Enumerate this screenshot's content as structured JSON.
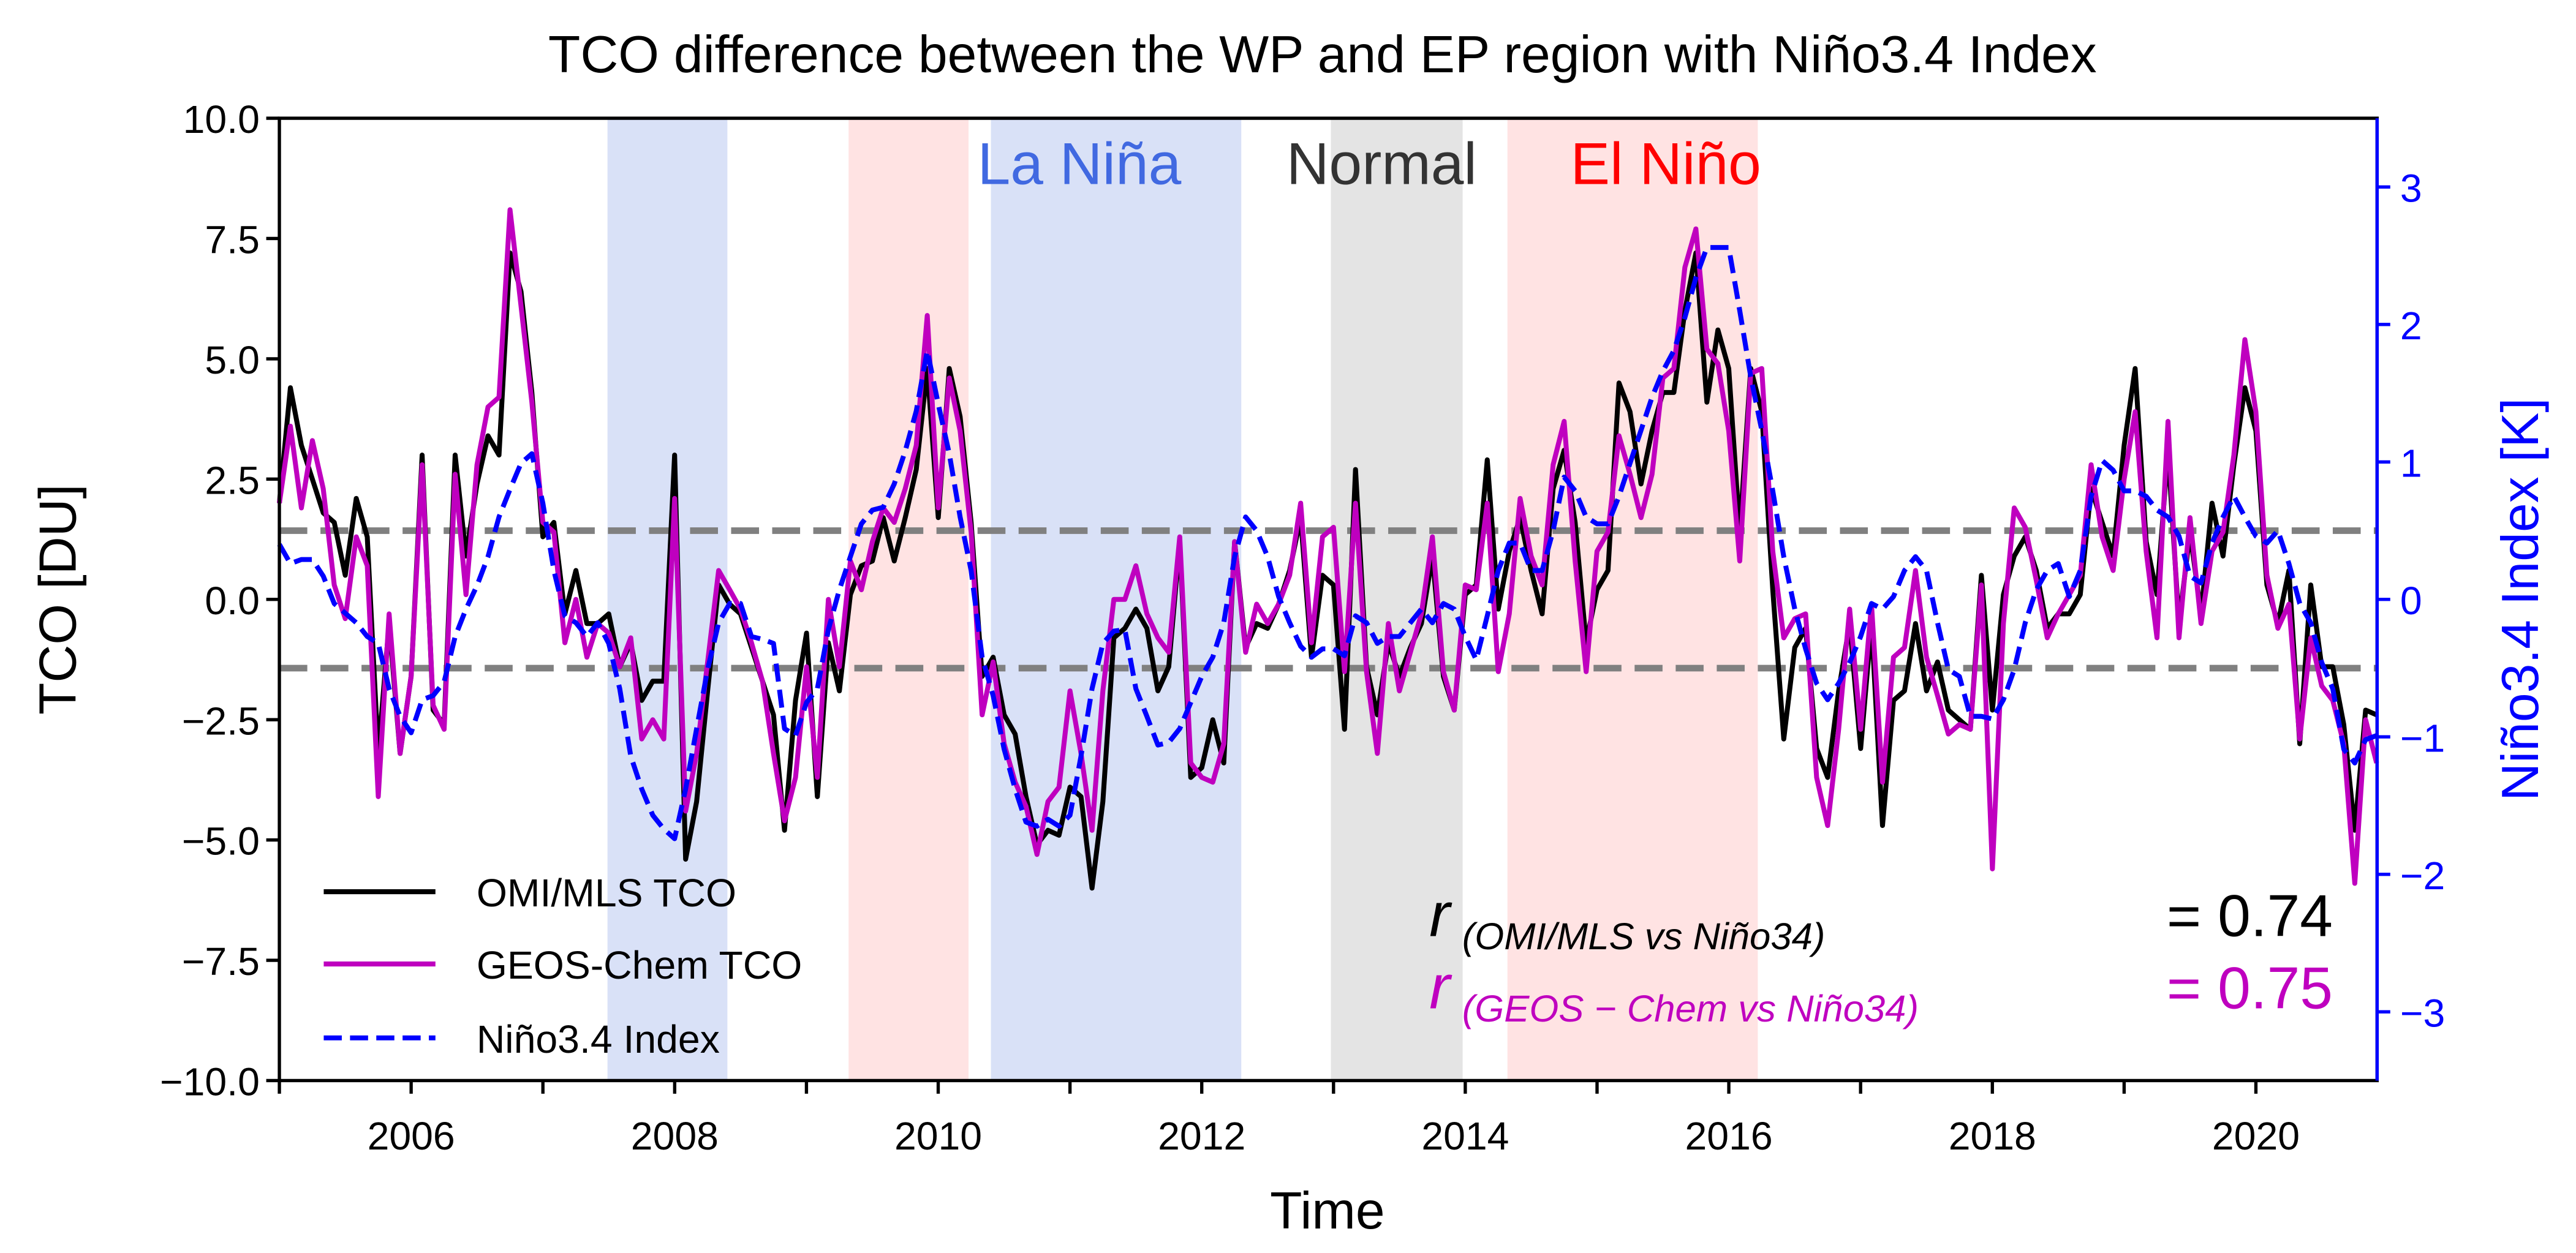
{
  "chart_data": {
    "type": "line",
    "title": "TCO difference between the WP and EP region with Niño3.4 Index",
    "xlabel": "Time",
    "ylabel": "TCO [DU]",
    "ylabel_right": "Niño3.4 Index [K]",
    "xlim": [
      2005.0,
      2020.92
    ],
    "ylim": [
      -10,
      10
    ],
    "ylim_right": [
      -3.5,
      3.5
    ],
    "x_start": 2005.0,
    "x_frequency": "monthly",
    "x_ticks": [
      2006,
      2008,
      2010,
      2012,
      2014,
      2016,
      2018,
      2020
    ],
    "x_tick_labels": [
      "2006",
      "2008",
      "2010",
      "2012",
      "2014",
      "2016",
      "2018",
      "2020"
    ],
    "y_ticks": [
      10,
      7.5,
      5,
      2.5,
      0,
      -2.5,
      -5,
      -7.5,
      -10
    ],
    "y_tick_labels": [
      "10.0",
      "7.5",
      "5.0",
      "2.5",
      "0.0",
      "−2.5",
      "−5.0",
      "−7.5",
      "−10.0"
    ],
    "y_right_ticks": [
      3,
      2,
      1,
      0,
      -1,
      -2,
      -3
    ],
    "y_right_tick_labels": [
      "3",
      "2",
      "1",
      "0",
      "−1",
      "−2",
      "−3"
    ],
    "threshold_lines_right_axis": [
      0.5,
      -0.5
    ],
    "shaded_periods": [
      {
        "phase": "La Niña",
        "start": 2007.49,
        "end": 2008.4,
        "color": "#d9e1f7"
      },
      {
        "phase": "El Niño",
        "start": 2009.32,
        "end": 2010.23,
        "color": "#ffe3e3"
      },
      {
        "phase": "La Niña",
        "start": 2010.4,
        "end": 2012.3,
        "color": "#d9e1f7"
      },
      {
        "phase": "Normal",
        "start": 2012.98,
        "end": 2013.98,
        "color": "#e4e4e4"
      },
      {
        "phase": "El Niño",
        "start": 2014.32,
        "end": 2016.22,
        "color": "#ffe3e3"
      }
    ],
    "phase_labels": [
      {
        "text": "La Niña",
        "color": "#4169e1"
      },
      {
        "text": "Normal",
        "color": "#333333"
      },
      {
        "text": "El Niño",
        "color": "#ff0000"
      }
    ],
    "legend": {
      "placement": "lower-left",
      "entries": [
        "OMI/MLS TCO",
        "GEOS-Chem TCO",
        "Niño3.4 Index"
      ]
    },
    "series": [
      {
        "name": "OMI/MLS TCO",
        "axis": "left",
        "color": "#000000",
        "style": "solid",
        "values": [
          2.0,
          4.4,
          3.2,
          2.5,
          1.8,
          1.6,
          0.5,
          2.1,
          1.3,
          -3.2,
          -0.5,
          -3.2,
          -1.6,
          3.0,
          -2.3,
          -2.6,
          3.0,
          0.9,
          2.4,
          3.4,
          3.0,
          7.2,
          6.4,
          4.3,
          1.3,
          1.6,
          -0.3,
          0.6,
          -0.5,
          -0.5,
          -0.3,
          -1.4,
          -0.9,
          -2.1,
          -1.7,
          -1.7,
          3.0,
          -5.4,
          -4.2,
          -1.9,
          0.3,
          -0.1,
          -0.3,
          -1.0,
          -1.7,
          -2.4,
          -4.8,
          -2.1,
          -0.7,
          -4.1,
          -0.9,
          -1.9,
          0.1,
          0.7,
          0.8,
          1.7,
          0.8,
          1.7,
          2.7,
          4.8,
          1.7,
          4.8,
          3.8,
          1.6,
          -1.6,
          -1.2,
          -2.4,
          -2.8,
          -4.1,
          -5.1,
          -4.8,
          -4.9,
          -3.9,
          -4.1,
          -6.0,
          -4.2,
          -0.8,
          -0.6,
          -0.2,
          -0.6,
          -1.9,
          -1.4,
          1.2,
          -3.7,
          -3.5,
          -2.5,
          -3.4,
          1.2,
          -1.0,
          -0.5,
          -0.6,
          -0.1,
          0.6,
          1.7,
          -1.2,
          0.5,
          0.3,
          -2.7,
          2.7,
          -1.4,
          -2.4,
          -0.9,
          -1.6,
          -1.0,
          -0.5,
          0.9,
          -1.6,
          -2.3,
          0.1,
          0.3,
          2.9,
          -0.2,
          1.0,
          1.7,
          0.6,
          -0.3,
          2.3,
          3.1,
          1.6,
          -0.9,
          0.2,
          0.6,
          4.5,
          3.9,
          2.4,
          3.5,
          4.3,
          4.3,
          6.0,
          7.2,
          4.1,
          5.6,
          4.8,
          1.4,
          4.8,
          3.9,
          0.2,
          -2.9,
          -1.0,
          -0.6,
          -3.1,
          -3.7,
          -1.9,
          -0.5,
          -3.1,
          -0.5,
          -4.7,
          -2.1,
          -1.9,
          -0.5,
          -1.9,
          -1.3,
          -2.3,
          -2.5,
          -2.7,
          0.5,
          -2.3,
          0.1,
          0.9,
          1.3,
          0.6,
          -0.6,
          -0.3,
          -0.3,
          0.1,
          2.3,
          1.6,
          0.9,
          3.2,
          4.8,
          1.2,
          0.1,
          3.1,
          -0.5,
          1.4,
          -0.3,
          2.0,
          0.9,
          2.8,
          4.4,
          3.5,
          0.3,
          -0.5,
          0.6,
          -3.0,
          0.3,
          -1.4,
          -1.4,
          -2.6,
          -4.8,
          -2.3,
          -2.4
        ]
      },
      {
        "name": "GEOS-Chem TCO",
        "axis": "left",
        "color": "#bf00bf",
        "style": "solid",
        "values": [
          2.0,
          3.6,
          1.9,
          3.3,
          2.3,
          0.3,
          -0.4,
          1.3,
          0.7,
          -4.1,
          -0.3,
          -3.2,
          -1.6,
          2.8,
          -2.2,
          -2.7,
          2.6,
          0.1,
          2.8,
          4.0,
          4.2,
          8.1,
          6.1,
          4.1,
          1.6,
          1.4,
          -0.9,
          0.0,
          -1.2,
          -0.5,
          -0.7,
          -1.4,
          -0.8,
          -2.9,
          -2.5,
          -2.9,
          2.1,
          -4.4,
          -3.2,
          -1.3,
          0.6,
          0.2,
          -0.2,
          -0.9,
          -1.7,
          -3.2,
          -4.6,
          -3.7,
          -1.4,
          -3.7,
          0.0,
          -1.4,
          0.8,
          0.2,
          1.2,
          1.9,
          1.6,
          2.3,
          3.2,
          5.9,
          1.9,
          4.6,
          3.5,
          1.4,
          -2.4,
          -1.3,
          -3.0,
          -3.8,
          -4.3,
          -5.3,
          -4.2,
          -3.9,
          -1.9,
          -3.2,
          -4.8,
          -1.9,
          0.0,
          0.0,
          0.7,
          -0.3,
          -0.8,
          -1.1,
          1.3,
          -3.4,
          -3.7,
          -3.8,
          -3.0,
          1.2,
          -1.1,
          -0.1,
          -0.5,
          -0.1,
          0.5,
          2.0,
          -0.9,
          1.3,
          1.5,
          -1.5,
          2.0,
          -1.5,
          -3.2,
          -0.5,
          -1.9,
          -1.1,
          -0.3,
          1.3,
          -1.5,
          -2.3,
          0.3,
          0.2,
          2.0,
          -1.5,
          -0.3,
          2.1,
          0.9,
          0.3,
          2.8,
          3.7,
          0.8,
          -1.5,
          1.0,
          1.4,
          3.4,
          2.6,
          1.7,
          2.6,
          4.6,
          4.8,
          6.9,
          7.7,
          5.2,
          4.9,
          3.5,
          0.8,
          4.7,
          4.8,
          1.0,
          -0.8,
          -0.4,
          -0.3,
          -3.7,
          -4.7,
          -2.7,
          -0.2,
          -2.7,
          -0.1,
          -3.8,
          -1.2,
          -1.0,
          0.6,
          -1.2,
          -2.0,
          -2.8,
          -2.6,
          -2.7,
          0.3,
          -5.6,
          -0.5,
          1.9,
          1.5,
          0.4,
          -0.8,
          -0.3,
          0.1,
          0.5,
          2.8,
          1.3,
          0.6,
          2.5,
          3.9,
          1.0,
          -0.8,
          3.7,
          -0.8,
          1.7,
          -0.5,
          1.0,
          1.4,
          3.0,
          5.4,
          3.9,
          0.5,
          -0.6,
          -0.1,
          -2.9,
          -0.8,
          -1.8,
          -2.1,
          -3.0,
          -5.9,
          -2.5,
          -3.4
        ]
      },
      {
        "name": "Niño3.4 Index",
        "axis": "right",
        "color": "#0000ff",
        "style": "dashed",
        "values": [
          0.4,
          0.26,
          0.29,
          0.29,
          0.17,
          -0.03,
          -0.1,
          -0.17,
          -0.27,
          -0.32,
          -0.65,
          -0.85,
          -0.97,
          -0.73,
          -0.7,
          -0.6,
          -0.27,
          -0.07,
          0.1,
          0.31,
          0.6,
          0.8,
          0.99,
          1.06,
          0.7,
          0.21,
          -0.12,
          -0.17,
          -0.27,
          -0.17,
          -0.32,
          -0.65,
          -1.14,
          -1.38,
          -1.57,
          -1.67,
          -1.74,
          -1.38,
          -0.94,
          -0.51,
          -0.17,
          -0.03,
          -0.03,
          -0.27,
          -0.29,
          -0.32,
          -0.94,
          -0.99,
          -0.75,
          -0.65,
          -0.22,
          0.07,
          0.31,
          0.55,
          0.65,
          0.67,
          0.84,
          1.08,
          1.37,
          1.81,
          1.42,
          1.06,
          0.6,
          0.21,
          -0.42,
          -0.7,
          -1.09,
          -1.38,
          -1.62,
          -1.65,
          -1.6,
          -1.65,
          -1.57,
          -1.14,
          -0.65,
          -0.32,
          -0.23,
          -0.22,
          -0.65,
          -0.85,
          -1.06,
          -1.04,
          -0.94,
          -0.75,
          -0.56,
          -0.42,
          -0.17,
          0.31,
          0.6,
          0.5,
          0.31,
          0.02,
          -0.17,
          -0.34,
          -0.42,
          -0.36,
          -0.36,
          -0.41,
          -0.12,
          -0.17,
          -0.32,
          -0.27,
          -0.27,
          -0.17,
          -0.07,
          -0.17,
          -0.03,
          -0.07,
          -0.27,
          -0.44,
          -0.12,
          0.21,
          0.41,
          0.41,
          0.21,
          0.21,
          0.5,
          0.89,
          0.79,
          0.6,
          0.55,
          0.55,
          0.75,
          0.99,
          1.23,
          1.47,
          1.66,
          1.81,
          2.05,
          2.34,
          2.56,
          2.56,
          2.56,
          2.1,
          1.62,
          1.23,
          0.79,
          0.31,
          -0.07,
          -0.36,
          -0.61,
          -0.73,
          -0.61,
          -0.46,
          -0.27,
          -0.03,
          -0.07,
          0.02,
          0.21,
          0.31,
          0.21,
          -0.17,
          -0.51,
          -0.56,
          -0.85,
          -0.85,
          -0.87,
          -0.73,
          -0.51,
          -0.17,
          0.07,
          0.21,
          0.26,
          0.02,
          0.21,
          0.75,
          1.01,
          0.94,
          0.79,
          0.79,
          0.75,
          0.65,
          0.6,
          0.46,
          0.17,
          0.12,
          0.41,
          0.6,
          0.75,
          0.6,
          0.46,
          0.41,
          0.5,
          0.26,
          -0.03,
          -0.17,
          -0.46,
          -0.65,
          -1.09,
          -1.19,
          -1.02,
          -0.99
        ]
      }
    ],
    "annotations": {
      "r_symbol": "r",
      "r1_subscript": "(OMI/MLS vs Niño34)",
      "r1_value": "= 0.74",
      "r2_subscript": "(GEOS − Chem vs Niño34)",
      "r2_value": "= 0.75"
    }
  }
}
